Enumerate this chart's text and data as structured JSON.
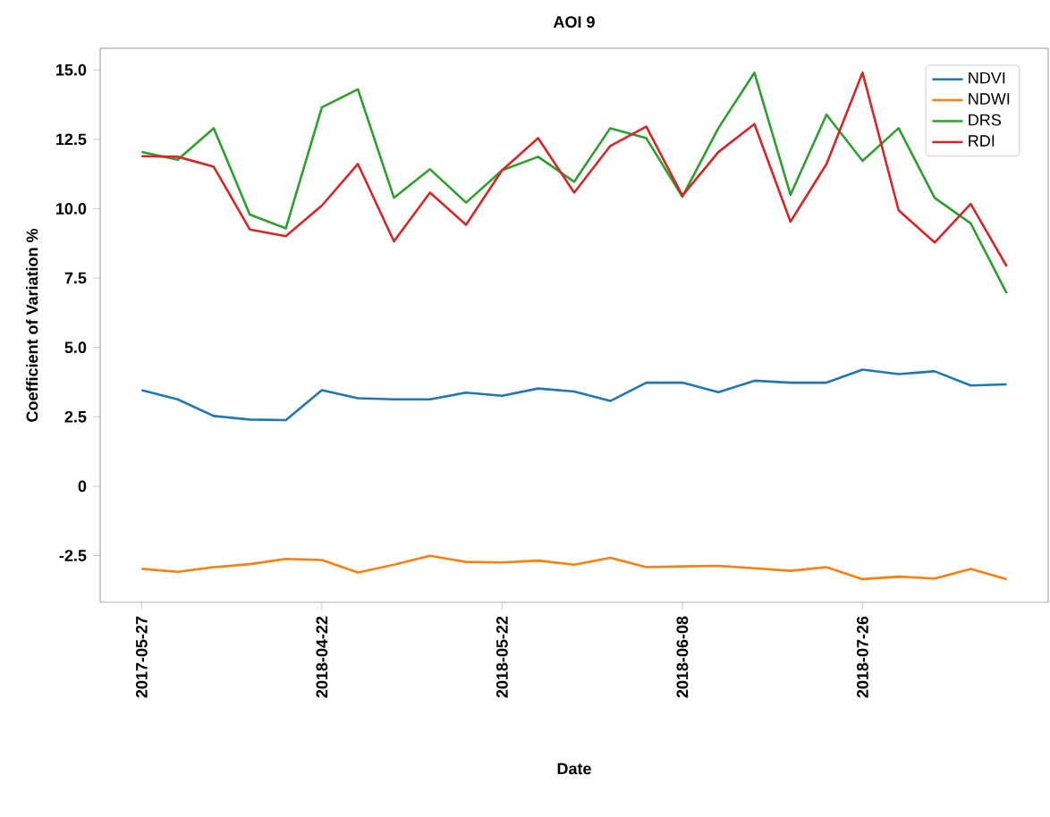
{
  "chart_data": {
    "type": "line",
    "title": "AOI 9",
    "xlabel": "Date",
    "ylabel": "Coefficient of Variation %",
    "categories": [
      "2017-05-27",
      null,
      null,
      null,
      null,
      "2018-04-22",
      null,
      null,
      null,
      null,
      "2018-05-22",
      null,
      null,
      null,
      null,
      "2018-06-08",
      null,
      null,
      null,
      null,
      "2018-07-26",
      null,
      null,
      null,
      null
    ],
    "series": [
      {
        "name": "NDVI",
        "color": "#1f77b4",
        "values": [
          3.46,
          3.13,
          2.53,
          2.4,
          2.38,
          3.46,
          3.17,
          3.13,
          3.13,
          3.37,
          3.26,
          3.52,
          3.41,
          3.07,
          3.73,
          3.73,
          3.39,
          3.8,
          3.73,
          3.73,
          4.2,
          4.04,
          4.14,
          3.63,
          3.67
        ]
      },
      {
        "name": "NDWI",
        "color": "#ff7f0e",
        "values": [
          -2.98,
          -3.09,
          -2.92,
          -2.81,
          -2.62,
          -2.66,
          -3.11,
          -2.83,
          -2.51,
          -2.73,
          -2.75,
          -2.68,
          -2.83,
          -2.58,
          -2.92,
          -2.89,
          -2.87,
          -2.96,
          -3.05,
          -2.92,
          -3.35,
          -3.26,
          -3.33,
          -2.98,
          -3.35
        ]
      },
      {
        "name": "DRS",
        "color": "#2ca02c",
        "values": [
          12.04,
          11.76,
          12.9,
          9.79,
          9.29,
          13.65,
          14.3,
          10.39,
          11.42,
          10.22,
          11.38,
          11.87,
          10.97,
          12.9,
          12.54,
          10.43,
          12.9,
          14.9,
          10.5,
          13.39,
          11.72,
          12.9,
          10.39,
          9.47,
          6.95
        ]
      },
      {
        "name": "RDI",
        "color": "#d62728",
        "values": [
          11.89,
          11.87,
          11.51,
          9.25,
          9.01,
          10.11,
          11.61,
          8.82,
          10.58,
          9.42,
          11.38,
          12.54,
          10.58,
          12.26,
          12.96,
          10.47,
          12.04,
          13.05,
          9.53,
          11.61,
          14.9,
          9.94,
          8.78,
          10.17,
          7.92
        ]
      }
    ],
    "ylim": [
      -4.19,
      15.78
    ],
    "yticks": [
      -2.5,
      0,
      2.5,
      {
        "value": 5,
        "label": "5.0"
      },
      7.5,
      {
        "value": 10,
        "label": "10.0"
      },
      12.5,
      {
        "value": 15,
        "label": "15.0"
      }
    ],
    "grid": false,
    "legend": "top right",
    "line_style": "solid"
  }
}
